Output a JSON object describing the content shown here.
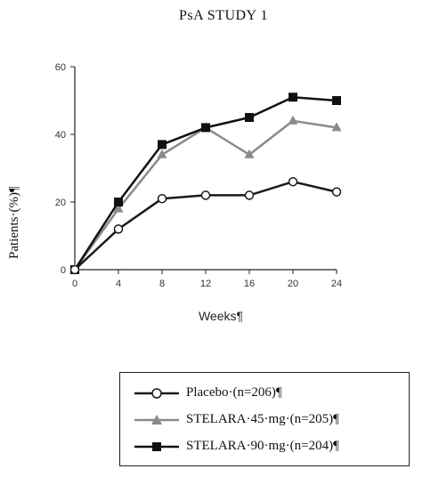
{
  "chart_data": {
    "type": "line",
    "title": "PsA STUDY 1",
    "xlabel": "Weeks¶",
    "ylabel": "Patients·(%)¶",
    "x": [
      0,
      4,
      8,
      12,
      16,
      20,
      24
    ],
    "xlim": [
      0,
      24
    ],
    "ylim": [
      0,
      60
    ],
    "xticks": [
      "0",
      "4",
      "8",
      "12",
      "16",
      "20",
      "24"
    ],
    "yticks": [
      "0",
      "20",
      "40",
      "60"
    ],
    "grid": false,
    "legend_position": "bottom",
    "series": [
      {
        "name": "Placebo·(n=206)¶",
        "marker": "open-circle",
        "color": "#1a1a1a",
        "values": [
          0,
          12,
          21,
          22,
          22,
          26,
          23
        ]
      },
      {
        "name": "STELARA·45·mg·(n=205)¶",
        "marker": "triangle",
        "color": "#8a8a8a",
        "values": [
          0,
          18,
          34,
          42,
          34,
          44,
          42
        ]
      },
      {
        "name": "STELARA·90·mg·(n=204)¶",
        "marker": "square",
        "color": "#111111",
        "values": [
          0,
          20,
          37,
          42,
          45,
          51,
          50
        ]
      }
    ]
  }
}
